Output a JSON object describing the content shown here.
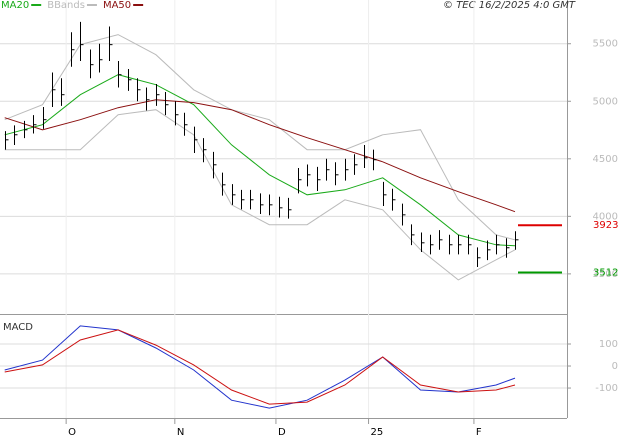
{
  "chart_data": [
    {
      "type": "ohlc",
      "source": "© TEC 16/2/2025 4:0 GMT",
      "x": [
        1,
        3,
        5,
        7,
        9,
        11,
        13,
        15,
        17,
        19,
        21,
        23,
        25,
        27,
        29,
        31,
        33,
        35,
        37,
        39,
        41,
        43,
        45,
        47,
        49,
        51,
        53,
        55,
        57,
        59,
        61,
        63,
        65,
        67,
        69,
        71,
        73,
        75,
        77,
        79,
        81,
        83,
        85,
        87,
        89,
        91,
        93,
        95,
        97,
        99,
        101,
        103,
        105,
        107,
        109
      ],
      "high": [
        4740,
        4790,
        4830,
        4880,
        4950,
        5250,
        5200,
        5600,
        5690,
        5450,
        5500,
        5650,
        5350,
        5280,
        5200,
        5120,
        5150,
        5080,
        5000,
        4900,
        4780,
        4680,
        4560,
        4380,
        4280,
        4230,
        4230,
        4200,
        4190,
        4170,
        4160,
        4420,
        4450,
        4430,
        4500,
        4470,
        4500,
        4540,
        4620,
        4580,
        4300,
        4240,
        4110,
        3930,
        3860,
        3840,
        3880,
        3840,
        3840,
        3840,
        3730,
        3790,
        3840,
        3810,
        3870
      ],
      "low": [
        4580,
        4620,
        4680,
        4720,
        4760,
        4950,
        4960,
        5300,
        5350,
        5200,
        5250,
        5350,
        5120,
        5090,
        5000,
        4920,
        4960,
        4880,
        4790,
        4700,
        4550,
        4470,
        4330,
        4180,
        4100,
        4060,
        4060,
        4020,
        4010,
        3990,
        3980,
        4200,
        4260,
        4220,
        4310,
        4270,
        4310,
        4360,
        4420,
        4400,
        4090,
        4050,
        3920,
        3750,
        3690,
        3670,
        3710,
        3670,
        3670,
        3670,
        3560,
        3620,
        3670,
        3640,
        3710
      ],
      "close": [
        4665,
        4709,
        4752,
        4796,
        4840,
        5100,
        5057,
        5448,
        5492,
        5318,
        5361,
        5492,
        5231,
        5187,
        5100,
        5013,
        5057,
        4970,
        4883,
        4796,
        4665,
        4579,
        4448,
        4274,
        4187,
        4144,
        4144,
        4100,
        4100,
        4074,
        4057,
        4318,
        4361,
        4318,
        4405,
        4361,
        4405,
        4448,
        4509,
        4492,
        4187,
        4144,
        4013,
        3839,
        3770,
        3753,
        3796,
        3753,
        3753,
        3753,
        3640,
        3709,
        3753,
        3727,
        3796
      ],
      "color": "#000000",
      "series": [
        {
          "name": "MA20",
          "color": "#1aaa1a",
          "x": [
            1,
            9,
            17,
            25,
            33,
            41,
            49,
            57,
            65,
            73,
            81,
            89,
            97,
            105,
            109
          ],
          "values": [
            4709,
            4796,
            5057,
            5231,
            5144,
            4970,
            4622,
            4361,
            4187,
            4231,
            4335,
            4100,
            3839,
            3753,
            3744
          ]
        },
        {
          "name": "BBands",
          "color": "#bbbbbb",
          "x": [
            1,
            9,
            17,
            25,
            33,
            41,
            49,
            57,
            65,
            73,
            81,
            89,
            97,
            105,
            109
          ],
          "upper": [
            4840,
            4970,
            5492,
            5579,
            5405,
            5100,
            4927,
            4840,
            4579,
            4579,
            4709,
            4753,
            4144,
            3839,
            3796
          ],
          "lower": [
            4579,
            4579,
            4579,
            4883,
            4927,
            4709,
            4100,
            3927,
            3927,
            4144,
            4057,
            3709,
            3448,
            3622,
            3709
          ]
        },
        {
          "name": "MA50",
          "color": "#8b1010",
          "x": [
            1,
            9,
            17,
            25,
            33,
            41,
            49,
            57,
            65,
            73,
            81,
            89,
            97,
            105,
            109
          ],
          "values": [
            4857,
            4752,
            4840,
            4944,
            5013,
            4988,
            4927,
            4796,
            4683,
            4579,
            4474,
            4335,
            4214,
            4100,
            4040
          ]
        }
      ],
      "levels": [
        {
          "value": 3923,
          "color": "#dd0000"
        },
        {
          "value": 3512,
          "color": "#009900"
        }
      ],
      "xlim": [
        0,
        120
      ],
      "xticks": [
        {
          "value": 14,
          "label": "O"
        },
        {
          "value": 37,
          "label": "N"
        },
        {
          "value": 58.4,
          "label": "D"
        },
        {
          "value": 78,
          "label": "25"
        },
        {
          "value": 100.3,
          "label": "F"
        }
      ],
      "ylim": [
        3160,
        5880
      ],
      "yticks": [
        3500,
        4000,
        4500,
        5000,
        5500
      ],
      "grid": true
    },
    {
      "type": "line",
      "title": "MACD",
      "x": [
        1,
        9,
        17,
        25,
        33,
        41,
        49,
        57,
        65,
        73,
        81,
        89,
        97,
        105,
        109
      ],
      "series": [
        {
          "color": "#2233cc",
          "values": [
            -18,
            27,
            182,
            164,
            82,
            -18,
            -155,
            -191,
            -155,
            -64,
            41,
            -109,
            -118,
            -86,
            -55
          ]
        },
        {
          "color": "#cc1111",
          "values": [
            -27,
            5,
            118,
            164,
            95,
            5,
            -109,
            -173,
            -164,
            -86,
            41,
            -86,
            -118,
            -109,
            -86
          ]
        }
      ],
      "xlim": [
        0,
        120
      ],
      "ylim": [
        -236,
        218
      ],
      "yticks": [
        -100,
        0,
        100
      ],
      "grid": true
    }
  ]
}
